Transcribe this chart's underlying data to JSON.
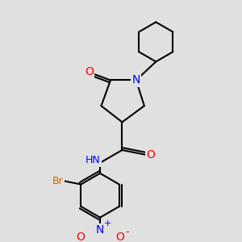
{
  "background_color": "#e0e0e0",
  "bond_color": "#000000",
  "bond_lw": 1.5,
  "atom_colors": {
    "O": "#ff0000",
    "N": "#0000ff",
    "Br": "#cc6600",
    "N+": "#0000ff",
    "O-": "#ff0000"
  },
  "font_size": 9,
  "fig_size": [
    3,
    3
  ],
  "dpi": 100
}
